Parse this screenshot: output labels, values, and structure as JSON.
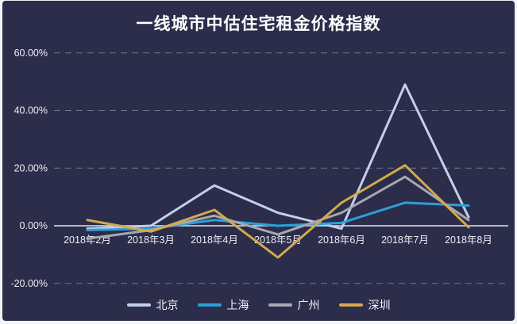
{
  "page": {
    "background_color": "#2b2d4a",
    "frame_color": "#f2f3f5"
  },
  "chart": {
    "title": "一线城市中估住宅租金价格指数"
  },
  "chart_data": {
    "type": "line",
    "title": "一线城市中估住宅租金价格指数",
    "categories": [
      "2018年2月",
      "2018年3月",
      "2018年4月",
      "2018年5月",
      "2018年6月",
      "2018年7月",
      "2018年8月"
    ],
    "series": [
      {
        "key": "beijing",
        "name": "北京",
        "color": "#c2cfed",
        "values": [
          -1,
          0,
          14,
          4.5,
          -1,
          49,
          3
        ]
      },
      {
        "key": "shanghai",
        "name": "上海",
        "color": "#2da0d8",
        "values": [
          -1.5,
          -1,
          2,
          0,
          1,
          8,
          7
        ]
      },
      {
        "key": "guangzhou",
        "name": "广州",
        "color": "#a8a8b2",
        "values": [
          -4.5,
          -1.5,
          3.5,
          -3,
          4.5,
          17,
          2
        ]
      },
      {
        "key": "shenzhen",
        "name": "深圳",
        "color": "#d2a94d",
        "values": [
          2,
          -2,
          5.5,
          -11,
          8,
          21,
          -0.5
        ]
      }
    ],
    "yticks": [
      {
        "label": "60.00%",
        "value": 60
      },
      {
        "label": "40.00%",
        "value": 40
      },
      {
        "label": "20.00%",
        "value": 20
      },
      {
        "label": "0.00%",
        "value": 0
      },
      {
        "label": "-20.00%",
        "value": -20
      }
    ],
    "ylim": [
      -27,
      70
    ],
    "xlabel": "",
    "ylabel": "",
    "grid": "horizontal-dashed",
    "zero_axis": "solid",
    "legend_position": "bottom",
    "colors": {
      "grid_line": "#7d8199",
      "zero_line": "#eceef6",
      "tick_text": "#eceef6"
    }
  }
}
